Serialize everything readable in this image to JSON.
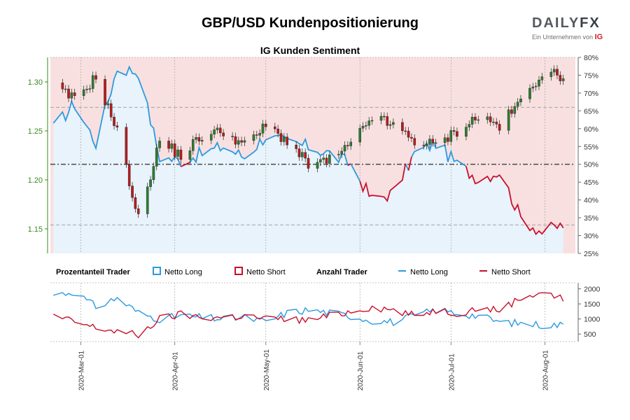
{
  "title": "GBP/USD Kundenpositionierung",
  "subtitle": "IG Kunden Sentiment",
  "logo": {
    "brand_main": "DAILY",
    "brand_fx": "FX",
    "tagline": "Ein Unternehmen von",
    "tagline_brand": "IG"
  },
  "colors": {
    "long": "#2c9ae0",
    "short": "#c8102e",
    "long_fill": "#e8f3fb",
    "short_fill": "#f9e0e0",
    "candle_up": "#2e7d32",
    "candle_down": "#b71c1c",
    "left_axis": "#3a8a1e"
  },
  "legend": {
    "pct_label": "Prozentanteil Trader",
    "pct_long": "Netto Long",
    "pct_short": "Netto Short",
    "count_label": "Anzahl Trader",
    "count_long": "Netto Long",
    "count_short": "Netto Short"
  },
  "chart_data": [
    {
      "type": "candlestick",
      "name": "GBP/USD",
      "y_axis": "left",
      "ylim": [
        1.125,
        1.325
      ],
      "yticks": [
        "1.15",
        "1.20",
        "1.25",
        "1.30"
      ],
      "x_start": "2020-02-20",
      "weekly_closes": [
        [
          "2020-02-21",
          1.295
        ],
        [
          "2020-02-28",
          1.282
        ],
        [
          "2020-03-06",
          1.305
        ],
        [
          "2020-03-13",
          1.25
        ],
        [
          "2020-03-20",
          1.16
        ],
        [
          "2020-03-27",
          1.24
        ],
        [
          "2020-04-03",
          1.225
        ],
        [
          "2020-04-10",
          1.245
        ],
        [
          "2020-04-17",
          1.25
        ],
        [
          "2020-04-24",
          1.235
        ],
        [
          "2020-05-01",
          1.255
        ],
        [
          "2020-05-08",
          1.24
        ],
        [
          "2020-05-15",
          1.215
        ],
        [
          "2020-05-22",
          1.22
        ],
        [
          "2020-05-29",
          1.235
        ],
        [
          "2020-06-05",
          1.265
        ],
        [
          "2020-06-12",
          1.255
        ],
        [
          "2020-06-19",
          1.24
        ],
        [
          "2020-06-26",
          1.235
        ],
        [
          "2020-07-03",
          1.25
        ],
        [
          "2020-07-10",
          1.265
        ],
        [
          "2020-07-17",
          1.255
        ],
        [
          "2020-07-24",
          1.28
        ],
        [
          "2020-07-31",
          1.31
        ],
        [
          "2020-08-07",
          1.305
        ]
      ]
    },
    {
      "type": "line",
      "name": "Netto Long %",
      "y_axis": "right",
      "ylim": [
        25,
        80
      ],
      "yticks": [
        "25%",
        "30%",
        "35%",
        "40%",
        "45%",
        "50%",
        "55%",
        "60%",
        "65%",
        "70%",
        "75%",
        "80%"
      ],
      "reference_lines": [
        50,
        66,
        33
      ],
      "weekly_values": [
        [
          "2020-02-21",
          60
        ],
        [
          "2020-02-28",
          67
        ],
        [
          "2020-03-06",
          56
        ],
        [
          "2020-03-13",
          77
        ],
        [
          "2020-03-20",
          76
        ],
        [
          "2020-03-27",
          52
        ],
        [
          "2020-04-03",
          51
        ],
        [
          "2020-04-10",
          53
        ],
        [
          "2020-04-17",
          55
        ],
        [
          "2020-04-24",
          52
        ],
        [
          "2020-05-01",
          58
        ],
        [
          "2020-05-08",
          56
        ],
        [
          "2020-05-15",
          55
        ],
        [
          "2020-05-22",
          53
        ],
        [
          "2020-05-29",
          50
        ],
        [
          "2020-06-05",
          40
        ],
        [
          "2020-06-12",
          42
        ],
        [
          "2020-06-19",
          53
        ],
        [
          "2020-06-26",
          56
        ],
        [
          "2020-07-03",
          50
        ],
        [
          "2020-07-10",
          46
        ],
        [
          "2020-07-17",
          48
        ],
        [
          "2020-07-24",
          35
        ],
        [
          "2020-07-31",
          31
        ],
        [
          "2020-08-07",
          33
        ]
      ]
    },
    {
      "type": "line",
      "name": "Anzahl Trader",
      "y_axis": "right",
      "ylim": [
        250,
        2200
      ],
      "yticks": [
        "500",
        "1000",
        "1500",
        "2000"
      ],
      "series": [
        {
          "name": "Netto Long",
          "weekly_values": [
            [
              "2020-02-21",
              1800
            ],
            [
              "2020-02-28",
              1900
            ],
            [
              "2020-03-06",
              1400
            ],
            [
              "2020-03-13",
              1700
            ],
            [
              "2020-03-20",
              1200
            ],
            [
              "2020-03-27",
              1000
            ],
            [
              "2020-04-03",
              1100
            ],
            [
              "2020-04-10",
              1050
            ],
            [
              "2020-04-17",
              1000
            ],
            [
              "2020-04-24",
              1050
            ],
            [
              "2020-05-01",
              900
            ],
            [
              "2020-05-08",
              1200
            ],
            [
              "2020-05-15",
              1300
            ],
            [
              "2020-05-22",
              1200
            ],
            [
              "2020-05-29",
              1100
            ],
            [
              "2020-06-05",
              950
            ],
            [
              "2020-06-12",
              900
            ],
            [
              "2020-06-19",
              1100
            ],
            [
              "2020-06-26",
              1300
            ],
            [
              "2020-07-03",
              1200
            ],
            [
              "2020-07-10",
              1100
            ],
            [
              "2020-07-17",
              900
            ],
            [
              "2020-07-24",
              850
            ],
            [
              "2020-07-31",
              800
            ],
            [
              "2020-08-07",
              800
            ]
          ]
        },
        {
          "name": "Netto Short",
          "weekly_values": [
            [
              "2020-02-21",
              1100
            ],
            [
              "2020-02-28",
              900
            ],
            [
              "2020-03-06",
              700
            ],
            [
              "2020-03-13",
              600
            ],
            [
              "2020-03-20",
              450
            ],
            [
              "2020-03-27",
              1000
            ],
            [
              "2020-04-03",
              1150
            ],
            [
              "2020-04-10",
              1050
            ],
            [
              "2020-04-17",
              1050
            ],
            [
              "2020-04-24",
              1100
            ],
            [
              "2020-05-01",
              1000
            ],
            [
              "2020-05-08",
              1000
            ],
            [
              "2020-05-15",
              950
            ],
            [
              "2020-05-22",
              1100
            ],
            [
              "2020-05-29",
              1250
            ],
            [
              "2020-06-05",
              1400
            ],
            [
              "2020-06-12",
              1300
            ],
            [
              "2020-06-19",
              1100
            ],
            [
              "2020-06-26",
              1300
            ],
            [
              "2020-07-03",
              1200
            ],
            [
              "2020-07-10",
              1350
            ],
            [
              "2020-07-17",
              1300
            ],
            [
              "2020-07-24",
              1700
            ],
            [
              "2020-07-31",
              1900
            ],
            [
              "2020-08-07",
              1650
            ]
          ]
        }
      ]
    }
  ],
  "x_axis": {
    "start": "2020-02-20",
    "end": "2020-08-11",
    "ticks": [
      {
        "date": "2020-03-01",
        "label": "2020-Mar-01"
      },
      {
        "date": "2020-04-01",
        "label": "2020-Apr-01"
      },
      {
        "date": "2020-05-01",
        "label": "2020-May-01"
      },
      {
        "date": "2020-06-01",
        "label": "2020-Jun-01"
      },
      {
        "date": "2020-07-01",
        "label": "2020-Jul-01"
      },
      {
        "date": "2020-08-01",
        "label": "2020-Aug-01"
      }
    ]
  }
}
